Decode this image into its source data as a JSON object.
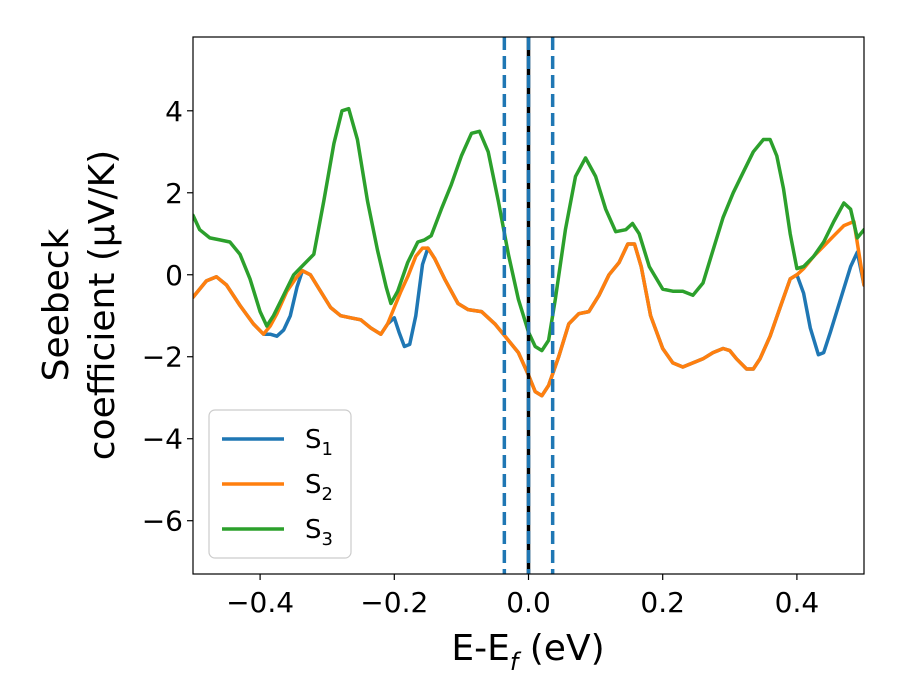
{
  "chart_data": {
    "type": "line",
    "xlabel_main": "E-E",
    "xlabel_sub": "f",
    "xlabel_unit": " (eV)",
    "ylabel_line1": "Seebeck",
    "ylabel_line2": "coefficient  (μV/K)",
    "xlim": [
      -0.5,
      0.5
    ],
    "ylim": [
      -7.3,
      5.8
    ],
    "xticks": [
      -0.4,
      -0.2,
      0.0,
      0.2,
      0.4
    ],
    "xtick_labels": [
      "−0.4",
      "−0.2",
      "0.0",
      "0.2",
      "0.4"
    ],
    "yticks": [
      -6,
      -4,
      -2,
      0,
      2,
      4
    ],
    "ytick_labels": [
      "−6",
      "−4",
      "−2",
      "0",
      "2",
      "4"
    ],
    "grid": false,
    "legend_position": "lower-left",
    "vertical_lines": [
      {
        "x": -0.036,
        "color": "#1f77b4",
        "style": "dashed"
      },
      {
        "x": 0.0,
        "color": "#000000",
        "style": "solid"
      },
      {
        "x": 0.0,
        "color": "#1f77b4",
        "style": "dashed"
      },
      {
        "x": 0.036,
        "color": "#1f77b4",
        "style": "dashed"
      }
    ],
    "series": [
      {
        "name": "S",
        "subscript": "1",
        "color": "#1f77b4",
        "points": [
          [
            -0.5,
            -0.55
          ],
          [
            -0.48,
            -0.15
          ],
          [
            -0.465,
            -0.05
          ],
          [
            -0.45,
            -0.25
          ],
          [
            -0.43,
            -0.75
          ],
          [
            -0.41,
            -1.2
          ],
          [
            -0.395,
            -1.45
          ],
          [
            -0.385,
            -1.45
          ],
          [
            -0.375,
            -1.5
          ],
          [
            -0.365,
            -1.35
          ],
          [
            -0.355,
            -1.0
          ],
          [
            -0.345,
            -0.3
          ],
          [
            -0.337,
            0.1
          ],
          [
            -0.325,
            0.0
          ],
          [
            -0.31,
            -0.4
          ],
          [
            -0.295,
            -0.8
          ],
          [
            -0.28,
            -1.0
          ],
          [
            -0.265,
            -1.05
          ],
          [
            -0.25,
            -1.1
          ],
          [
            -0.235,
            -1.3
          ],
          [
            -0.22,
            -1.45
          ],
          [
            -0.21,
            -1.2
          ],
          [
            -0.2,
            -1.05
          ],
          [
            -0.193,
            -1.4
          ],
          [
            -0.185,
            -1.75
          ],
          [
            -0.177,
            -1.7
          ],
          [
            -0.168,
            -1.0
          ],
          [
            -0.158,
            0.25
          ],
          [
            -0.15,
            0.65
          ],
          [
            -0.14,
            0.4
          ],
          [
            -0.125,
            -0.1
          ],
          [
            -0.105,
            -0.7
          ],
          [
            -0.09,
            -0.85
          ],
          [
            -0.07,
            -0.9
          ],
          [
            -0.05,
            -1.2
          ],
          [
            -0.035,
            -1.5
          ],
          [
            -0.015,
            -1.9
          ],
          [
            0.0,
            -2.45
          ],
          [
            0.01,
            -2.85
          ],
          [
            0.02,
            -2.95
          ],
          [
            0.03,
            -2.7
          ],
          [
            0.045,
            -2.0
          ],
          [
            0.06,
            -1.2
          ],
          [
            0.075,
            -0.95
          ],
          [
            0.09,
            -0.9
          ],
          [
            0.105,
            -0.5
          ],
          [
            0.12,
            0.0
          ],
          [
            0.135,
            0.3
          ],
          [
            0.148,
            0.75
          ],
          [
            0.158,
            0.75
          ],
          [
            0.168,
            0.2
          ],
          [
            0.182,
            -1.0
          ],
          [
            0.2,
            -1.8
          ],
          [
            0.215,
            -2.15
          ],
          [
            0.23,
            -2.25
          ],
          [
            0.245,
            -2.15
          ],
          [
            0.26,
            -2.05
          ],
          [
            0.275,
            -1.9
          ],
          [
            0.29,
            -1.8
          ],
          [
            0.3,
            -1.85
          ],
          [
            0.31,
            -2.05
          ],
          [
            0.325,
            -2.3
          ],
          [
            0.335,
            -2.3
          ],
          [
            0.345,
            -2.05
          ],
          [
            0.36,
            -1.5
          ],
          [
            0.375,
            -0.8
          ],
          [
            0.39,
            -0.1
          ],
          [
            0.4,
            0.0
          ],
          [
            0.41,
            -0.45
          ],
          [
            0.42,
            -1.3
          ],
          [
            0.432,
            -1.95
          ],
          [
            0.44,
            -1.9
          ],
          [
            0.45,
            -1.4
          ],
          [
            0.465,
            -0.6
          ],
          [
            0.48,
            0.2
          ],
          [
            0.49,
            0.55
          ],
          [
            0.5,
            -0.25
          ]
        ]
      },
      {
        "name": "S",
        "subscript": "2",
        "color": "#ff7f0e",
        "points": [
          [
            -0.5,
            -0.55
          ],
          [
            -0.48,
            -0.15
          ],
          [
            -0.465,
            -0.05
          ],
          [
            -0.45,
            -0.25
          ],
          [
            -0.43,
            -0.75
          ],
          [
            -0.41,
            -1.2
          ],
          [
            -0.395,
            -1.45
          ],
          [
            -0.385,
            -1.25
          ],
          [
            -0.375,
            -0.95
          ],
          [
            -0.36,
            -0.4
          ],
          [
            -0.345,
            -0.05
          ],
          [
            -0.337,
            0.1
          ],
          [
            -0.325,
            0.0
          ],
          [
            -0.31,
            -0.4
          ],
          [
            -0.295,
            -0.8
          ],
          [
            -0.28,
            -1.0
          ],
          [
            -0.265,
            -1.05
          ],
          [
            -0.25,
            -1.1
          ],
          [
            -0.235,
            -1.3
          ],
          [
            -0.22,
            -1.45
          ],
          [
            -0.21,
            -1.2
          ],
          [
            -0.2,
            -0.8
          ],
          [
            -0.19,
            -0.4
          ],
          [
            -0.18,
            -0.05
          ],
          [
            -0.168,
            0.45
          ],
          [
            -0.158,
            0.65
          ],
          [
            -0.15,
            0.65
          ],
          [
            -0.14,
            0.4
          ],
          [
            -0.125,
            -0.1
          ],
          [
            -0.105,
            -0.7
          ],
          [
            -0.09,
            -0.85
          ],
          [
            -0.07,
            -0.9
          ],
          [
            -0.05,
            -1.2
          ],
          [
            -0.035,
            -1.5
          ],
          [
            -0.015,
            -1.9
          ],
          [
            0.0,
            -2.45
          ],
          [
            0.01,
            -2.85
          ],
          [
            0.02,
            -2.95
          ],
          [
            0.03,
            -2.7
          ],
          [
            0.045,
            -2.0
          ],
          [
            0.06,
            -1.2
          ],
          [
            0.075,
            -0.95
          ],
          [
            0.09,
            -0.9
          ],
          [
            0.105,
            -0.5
          ],
          [
            0.12,
            0.0
          ],
          [
            0.135,
            0.3
          ],
          [
            0.148,
            0.75
          ],
          [
            0.158,
            0.75
          ],
          [
            0.168,
            0.2
          ],
          [
            0.182,
            -1.0
          ],
          [
            0.2,
            -1.8
          ],
          [
            0.215,
            -2.15
          ],
          [
            0.23,
            -2.25
          ],
          [
            0.245,
            -2.15
          ],
          [
            0.26,
            -2.05
          ],
          [
            0.275,
            -1.9
          ],
          [
            0.29,
            -1.8
          ],
          [
            0.3,
            -1.85
          ],
          [
            0.31,
            -2.05
          ],
          [
            0.325,
            -2.3
          ],
          [
            0.335,
            -2.3
          ],
          [
            0.345,
            -2.05
          ],
          [
            0.36,
            -1.5
          ],
          [
            0.375,
            -0.8
          ],
          [
            0.39,
            -0.1
          ],
          [
            0.4,
            0.0
          ],
          [
            0.41,
            0.15
          ],
          [
            0.425,
            0.45
          ],
          [
            0.44,
            0.7
          ],
          [
            0.455,
            0.95
          ],
          [
            0.47,
            1.2
          ],
          [
            0.485,
            1.3
          ],
          [
            0.5,
            -0.25
          ]
        ]
      },
      {
        "name": "S",
        "subscript": "3",
        "color": "#2ca02c",
        "points": [
          [
            -0.5,
            1.45
          ],
          [
            -0.49,
            1.1
          ],
          [
            -0.475,
            0.9
          ],
          [
            -0.46,
            0.85
          ],
          [
            -0.445,
            0.8
          ],
          [
            -0.43,
            0.5
          ],
          [
            -0.415,
            -0.1
          ],
          [
            -0.4,
            -0.9
          ],
          [
            -0.39,
            -1.25
          ],
          [
            -0.38,
            -1.0
          ],
          [
            -0.365,
            -0.5
          ],
          [
            -0.35,
            0.0
          ],
          [
            -0.338,
            0.2
          ],
          [
            -0.32,
            0.5
          ],
          [
            -0.305,
            1.8
          ],
          [
            -0.29,
            3.2
          ],
          [
            -0.278,
            4.0
          ],
          [
            -0.268,
            4.05
          ],
          [
            -0.255,
            3.3
          ],
          [
            -0.24,
            1.8
          ],
          [
            -0.225,
            0.6
          ],
          [
            -0.212,
            -0.3
          ],
          [
            -0.205,
            -0.7
          ],
          [
            -0.195,
            -0.4
          ],
          [
            -0.18,
            0.3
          ],
          [
            -0.165,
            0.8
          ],
          [
            -0.155,
            0.85
          ],
          [
            -0.145,
            0.95
          ],
          [
            -0.13,
            1.6
          ],
          [
            -0.115,
            2.2
          ],
          [
            -0.1,
            2.9
          ],
          [
            -0.085,
            3.45
          ],
          [
            -0.073,
            3.5
          ],
          [
            -0.06,
            3.0
          ],
          [
            -0.045,
            1.8
          ],
          [
            -0.03,
            0.5
          ],
          [
            -0.015,
            -0.6
          ],
          [
            0.0,
            -1.4
          ],
          [
            0.01,
            -1.75
          ],
          [
            0.02,
            -1.85
          ],
          [
            0.03,
            -1.6
          ],
          [
            0.04,
            -0.6
          ],
          [
            0.055,
            1.1
          ],
          [
            0.07,
            2.4
          ],
          [
            0.085,
            2.85
          ],
          [
            0.1,
            2.4
          ],
          [
            0.115,
            1.6
          ],
          [
            0.13,
            1.05
          ],
          [
            0.145,
            1.1
          ],
          [
            0.155,
            1.25
          ],
          [
            0.165,
            1.0
          ],
          [
            0.18,
            0.2
          ],
          [
            0.2,
            -0.35
          ],
          [
            0.215,
            -0.4
          ],
          [
            0.23,
            -0.4
          ],
          [
            0.245,
            -0.5
          ],
          [
            0.26,
            -0.2
          ],
          [
            0.275,
            0.6
          ],
          [
            0.29,
            1.4
          ],
          [
            0.305,
            2.0
          ],
          [
            0.32,
            2.5
          ],
          [
            0.335,
            3.0
          ],
          [
            0.35,
            3.3
          ],
          [
            0.36,
            3.3
          ],
          [
            0.37,
            2.9
          ],
          [
            0.38,
            2.1
          ],
          [
            0.39,
            1.0
          ],
          [
            0.4,
            0.15
          ],
          [
            0.41,
            0.2
          ],
          [
            0.425,
            0.45
          ],
          [
            0.44,
            0.8
          ],
          [
            0.455,
            1.3
          ],
          [
            0.47,
            1.75
          ],
          [
            0.48,
            1.6
          ],
          [
            0.49,
            0.9
          ],
          [
            0.5,
            1.1
          ]
        ]
      }
    ]
  }
}
